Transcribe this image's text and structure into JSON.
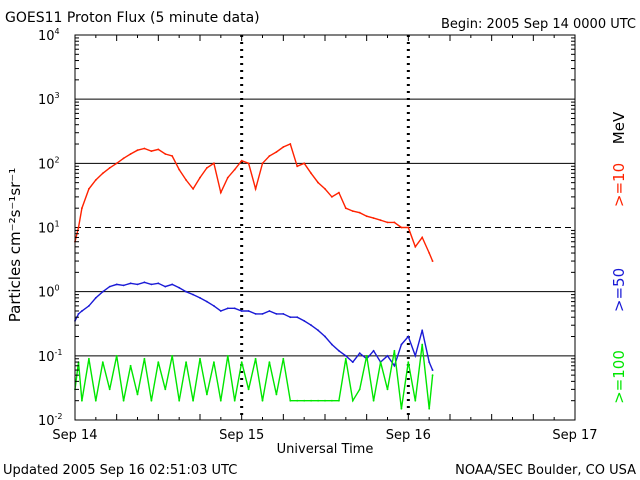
{
  "header": {
    "title": "GOES11 Proton Flux (5 minute data)",
    "begin": "Begin: 2005 Sep 14 0000 UTC"
  },
  "footer": {
    "updated": "Updated 2005 Sep 16 02:51:03 UTC",
    "credit": "NOAA/SEC Boulder, CO USA"
  },
  "colors": {
    "p10": "#ff2200",
    "p50": "#1a1ad6",
    "p100": "#00e600",
    "grid": "#000000"
  },
  "chart_data": {
    "type": "line",
    "title": "GOES11 Proton Flux (5 minute data)",
    "ylabel": "Particles cm⁻²s⁻¹sr⁻¹",
    "xlabel": "Universal Time",
    "yscale": "log",
    "ylim": [
      0.01,
      10000
    ],
    "xlim_hours": [
      0,
      72
    ],
    "x_unit": "hours after 2005 Sep 14 0000 UTC",
    "grid": true,
    "y_tick_mantissa": "10",
    "y_tick_exponents": [
      "-2",
      "-1",
      "0",
      "1",
      "2",
      "3",
      "4"
    ],
    "x_tick_labels": [
      "Sep 14",
      "Sep 15",
      "Sep 16",
      "Sep 17"
    ],
    "legend": [
      {
        "label": ">=10",
        "unit": "MeV",
        "color": "#ff2200"
      },
      {
        "label": ">=50",
        "unit": "",
        "color": "#1a1ad6"
      },
      {
        "label": ">=100",
        "unit": "",
        "color": "#00e600"
      }
    ],
    "series": [
      {
        "name": ">=10 MeV",
        "x": [
          0,
          0.5,
          1,
          2,
          3,
          4,
          5,
          6,
          7,
          8,
          9,
          10,
          11,
          12,
          13,
          14,
          15,
          16,
          17,
          18,
          19,
          20,
          21,
          22,
          23,
          24,
          25,
          26,
          27,
          28,
          29,
          30,
          31,
          32,
          33,
          34,
          35,
          36,
          37,
          38,
          39,
          40,
          41,
          42,
          43,
          44,
          45,
          46,
          47,
          48,
          49,
          50,
          51,
          51.5
        ],
        "y": [
          6,
          10,
          20,
          40,
          55,
          70,
          85,
          100,
          120,
          140,
          160,
          170,
          155,
          165,
          140,
          130,
          80,
          55,
          40,
          60,
          85,
          100,
          35,
          60,
          80,
          110,
          100,
          40,
          100,
          130,
          150,
          180,
          200,
          90,
          100,
          70,
          50,
          40,
          30,
          35,
          20,
          18,
          17,
          15,
          14,
          13,
          12,
          12,
          10,
          10,
          5,
          7,
          4,
          3
        ]
      },
      {
        "name": ">=50",
        "x": [
          0,
          0.5,
          1,
          2,
          3,
          4,
          5,
          6,
          7,
          8,
          9,
          10,
          11,
          12,
          13,
          14,
          15,
          16,
          17,
          18,
          19,
          20,
          21,
          22,
          23,
          24,
          25,
          26,
          27,
          28,
          29,
          30,
          31,
          32,
          33,
          34,
          35,
          36,
          37,
          38,
          39,
          40,
          41,
          42,
          43,
          44,
          45,
          46,
          47,
          48,
          49,
          50,
          51,
          51.5
        ],
        "y": [
          0.35,
          0.45,
          0.5,
          0.6,
          0.8,
          1.0,
          1.2,
          1.3,
          1.25,
          1.35,
          1.3,
          1.4,
          1.3,
          1.35,
          1.2,
          1.3,
          1.15,
          1.0,
          0.9,
          0.8,
          0.7,
          0.6,
          0.5,
          0.55,
          0.55,
          0.5,
          0.5,
          0.45,
          0.45,
          0.5,
          0.45,
          0.45,
          0.4,
          0.4,
          0.35,
          0.3,
          0.25,
          0.2,
          0.15,
          0.12,
          0.1,
          0.08,
          0.11,
          0.09,
          0.12,
          0.08,
          0.1,
          0.07,
          0.15,
          0.2,
          0.1,
          0.25,
          0.08,
          0.06
        ]
      },
      {
        "name": ">=100",
        "x": [
          0,
          0.5,
          1,
          2,
          3,
          4,
          5,
          6,
          7,
          8,
          9,
          10,
          11,
          12,
          13,
          14,
          15,
          16,
          17,
          18,
          19,
          20,
          21,
          22,
          23,
          24,
          25,
          26,
          27,
          28,
          29,
          30,
          31,
          32,
          33,
          34,
          35,
          36,
          37,
          38,
          39,
          40,
          41,
          42,
          43,
          44,
          45,
          46,
          47,
          48,
          49,
          50,
          51,
          51.5
        ],
        "y": [
          0.03,
          0.08,
          0.02,
          0.09,
          0.02,
          0.08,
          0.03,
          0.1,
          0.02,
          0.07,
          0.025,
          0.09,
          0.02,
          0.08,
          0.03,
          0.1,
          0.02,
          0.08,
          0.02,
          0.09,
          0.025,
          0.08,
          0.02,
          0.1,
          0.02,
          0.08,
          0.03,
          0.09,
          0.02,
          0.08,
          0.025,
          0.09,
          0.02,
          0.02,
          0.02,
          0.02,
          0.02,
          0.02,
          0.02,
          0.02,
          0.09,
          0.02,
          0.03,
          0.1,
          0.02,
          0.08,
          0.03,
          0.12,
          0.015,
          0.08,
          0.02,
          0.15,
          0.015,
          0.05
        ]
      }
    ]
  }
}
